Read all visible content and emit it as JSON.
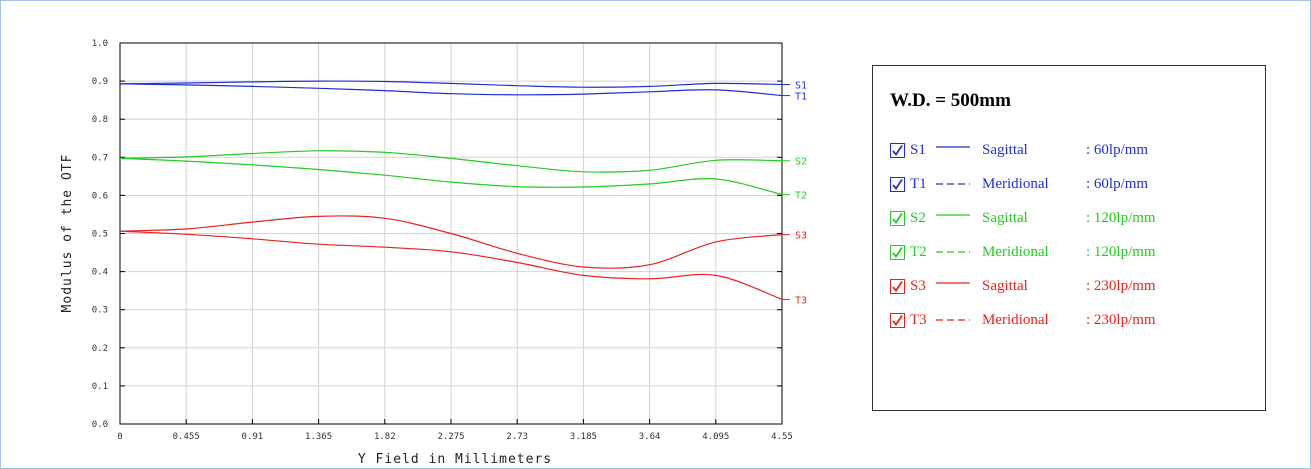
{
  "chart_data": {
    "type": "line",
    "xlabel": "Y Field in Millimeters",
    "ylabel": "Modulus of the OTF",
    "xlim": [
      0,
      4.55
    ],
    "ylim": [
      0,
      1.0
    ],
    "x_ticks": [
      "0",
      "0.455",
      "0.91",
      "1.365",
      "1.82",
      "2.275",
      "2.73",
      "3.185",
      "3.64",
      "4.095",
      "4.55"
    ],
    "y_ticks": [
      "0.0",
      "0.1",
      "0.2",
      "0.3",
      "0.4",
      "0.5",
      "0.6",
      "0.7",
      "0.8",
      "0.9",
      "1.0"
    ],
    "grid": true,
    "series": [
      {
        "name": "S1",
        "color": "#1f2fd6",
        "style": "solid",
        "x": [
          0,
          0.455,
          0.91,
          1.365,
          1.82,
          2.275,
          2.73,
          3.185,
          3.64,
          4.095,
          4.55
        ],
        "y": [
          0.893,
          0.895,
          0.898,
          0.9,
          0.899,
          0.894,
          0.888,
          0.884,
          0.886,
          0.894,
          0.891
        ]
      },
      {
        "name": "T1",
        "color": "#1f2fd6",
        "style": "dashed",
        "x": [
          0,
          0.455,
          0.91,
          1.365,
          1.82,
          2.275,
          2.73,
          3.185,
          3.64,
          4.095,
          4.55
        ],
        "y": [
          0.893,
          0.89,
          0.886,
          0.881,
          0.875,
          0.867,
          0.864,
          0.866,
          0.872,
          0.877,
          0.862
        ]
      },
      {
        "name": "S2",
        "color": "#22cc22",
        "style": "solid",
        "x": [
          0,
          0.455,
          0.91,
          1.365,
          1.82,
          2.275,
          2.73,
          3.185,
          3.64,
          4.095,
          4.55
        ],
        "y": [
          0.697,
          0.701,
          0.71,
          0.717,
          0.713,
          0.697,
          0.678,
          0.662,
          0.666,
          0.692,
          0.691
        ]
      },
      {
        "name": "T2",
        "color": "#22cc22",
        "style": "dashed",
        "x": [
          0,
          0.455,
          0.91,
          1.365,
          1.82,
          2.275,
          2.73,
          3.185,
          3.64,
          4.095,
          4.55
        ],
        "y": [
          0.697,
          0.69,
          0.68,
          0.668,
          0.653,
          0.635,
          0.623,
          0.622,
          0.63,
          0.643,
          0.602
        ]
      },
      {
        "name": "S3",
        "color": "#e8231e",
        "style": "solid",
        "x": [
          0,
          0.455,
          0.91,
          1.365,
          1.82,
          2.275,
          2.73,
          3.185,
          3.64,
          4.095,
          4.55
        ],
        "y": [
          0.506,
          0.512,
          0.53,
          0.545,
          0.54,
          0.5,
          0.448,
          0.412,
          0.418,
          0.478,
          0.497
        ]
      },
      {
        "name": "T3",
        "color": "#e8231e",
        "style": "dashed",
        "x": [
          0,
          0.455,
          0.91,
          1.365,
          1.82,
          2.275,
          2.73,
          3.185,
          3.64,
          4.095,
          4.55
        ],
        "y": [
          0.506,
          0.498,
          0.486,
          0.472,
          0.464,
          0.452,
          0.424,
          0.39,
          0.381,
          0.39,
          0.327
        ]
      }
    ]
  },
  "legend": {
    "title": "W.D. = 500mm",
    "items": [
      {
        "name": "S1",
        "desc": "Sagittal  ",
        "freq": ": 60lp/mm",
        "color": "#1f2fd6",
        "style": "solid",
        "checked": true
      },
      {
        "name": "T1",
        "desc": "Meridional",
        "freq": ": 60lp/mm",
        "color": "#1f2fd6",
        "style": "dashed",
        "checked": true
      },
      {
        "name": "S2",
        "desc": "Sagittal  ",
        "freq": ": 120lp/mm",
        "color": "#22cc22",
        "style": "solid",
        "checked": true
      },
      {
        "name": "T2",
        "desc": "Meridional",
        "freq": ": 120lp/mm",
        "color": "#22cc22",
        "style": "dashed",
        "checked": true
      },
      {
        "name": "S3",
        "desc": "Sagittal  ",
        "freq": ": 230lp/mm",
        "color": "#e8231e",
        "style": "solid",
        "checked": true
      },
      {
        "name": "T3",
        "desc": "Meridional",
        "freq": ": 230lp/mm",
        "color": "#e8231e",
        "style": "dashed",
        "checked": true
      }
    ]
  }
}
